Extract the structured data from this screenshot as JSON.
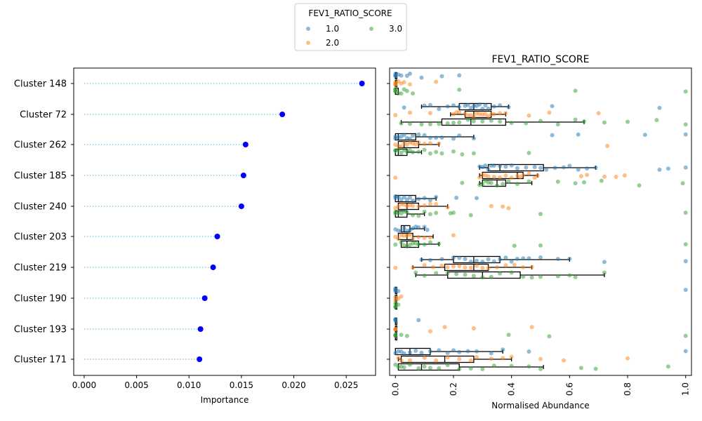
{
  "legend": {
    "title": "FEV1_RATIO_SCORE",
    "placement": "top-center",
    "entries": [
      {
        "label": "1.0",
        "color": "#1f77b4"
      },
      {
        "label": "2.0",
        "color": "#ff7f0e"
      },
      {
        "label": "3.0",
        "color": "#2ca02c"
      }
    ]
  },
  "chart_data": [
    {
      "type": "scatter",
      "variant": "lollipop",
      "title": "",
      "xlabel": "Importance",
      "ylabel": "",
      "xlim": [
        -0.001,
        0.0278
      ],
      "xticks": [
        "0.000",
        "0.005",
        "0.010",
        "0.015",
        "0.020",
        "0.025"
      ],
      "xtick_values": [
        0,
        0.005,
        0.01,
        0.015,
        0.02,
        0.025
      ],
      "grid": false,
      "point_color": "#0000ff",
      "stem_color": "#87ceeb",
      "categories": [
        "Cluster 148",
        "Cluster 72",
        "Cluster 262",
        "Cluster 185",
        "Cluster 240",
        "Cluster 203",
        "Cluster 219",
        "Cluster 190",
        "Cluster 193",
        "Cluster 171"
      ],
      "values": [
        0.0265,
        0.0189,
        0.0154,
        0.0152,
        0.015,
        0.0127,
        0.0123,
        0.0115,
        0.0111,
        0.011
      ]
    },
    {
      "type": "box",
      "variant": "box-with-strip",
      "title": "FEV1_RATIO_SCORE",
      "xlabel": "Normalised Abundance",
      "ylabel": "",
      "xlim": [
        -0.02,
        1.02
      ],
      "xticks": [
        "0.0",
        "0.2",
        "0.4",
        "0.6",
        "0.8",
        "1.0"
      ],
      "xtick_values": [
        0,
        0.2,
        0.4,
        0.6,
        0.8,
        1.0
      ],
      "grid": false,
      "categories": [
        "Cluster 148",
        "Cluster 72",
        "Cluster 262",
        "Cluster 185",
        "Cluster 240",
        "Cluster 203",
        "Cluster 219",
        "Cluster 190",
        "Cluster 193",
        "Cluster 171"
      ],
      "hue": [
        "1.0",
        "2.0",
        "3.0"
      ],
      "boxes": [
        [
          {
            "q1": 0,
            "med": 0,
            "q3": 0.005
          },
          {
            "q1": 0,
            "med": 0,
            "q3": 0.005
          },
          {
            "q1": 0,
            "med": 0,
            "q3": 0.01
          }
        ],
        [
          {
            "wlo": 0.09,
            "q1": 0.22,
            "med": 0.27,
            "q3": 0.33,
            "whi": 0.39
          },
          {
            "wlo": 0.19,
            "q1": 0.24,
            "med": 0.27,
            "q3": 0.33,
            "whi": 0.38
          },
          {
            "wlo": 0.02,
            "q1": 0.16,
            "med": 0.26,
            "q3": 0.38,
            "whi": 0.65
          }
        ],
        [
          {
            "q1": 0,
            "med": 0.01,
            "q3": 0.07,
            "whi": 0.27
          },
          {
            "q1": 0.01,
            "med": 0.03,
            "q3": 0.08,
            "whi": 0.15
          },
          {
            "q1": 0,
            "med": 0.01,
            "q3": 0.04,
            "whi": 0.09
          }
        ],
        [
          {
            "wlo": 0.29,
            "q1": 0.32,
            "med": 0.36,
            "q3": 0.51,
            "whi": 0.69
          },
          {
            "wlo": 0.29,
            "q1": 0.3,
            "med": 0.42,
            "q3": 0.44,
            "whi": 0.49
          },
          {
            "wlo": 0.29,
            "q1": 0.3,
            "med": 0.35,
            "q3": 0.38,
            "whi": 0.47
          }
        ],
        [
          {
            "q1": 0,
            "med": 0.01,
            "q3": 0.07,
            "whi": 0.14
          },
          {
            "q1": 0.01,
            "med": 0.04,
            "q3": 0.08,
            "whi": 0.18
          },
          {
            "q1": 0,
            "med": 0.01,
            "q3": 0.04,
            "whi": 0.1
          }
        ],
        [
          {
            "q1": 0.02,
            "med": 0.03,
            "q3": 0.05,
            "whi": 0.1
          },
          {
            "q1": 0.01,
            "med": 0.04,
            "q3": 0.06,
            "whi": 0.13
          },
          {
            "q1": 0.02,
            "med": 0.04,
            "q3": 0.08,
            "whi": 0.15
          }
        ],
        [
          {
            "wlo": 0.09,
            "q1": 0.2,
            "med": 0.27,
            "q3": 0.36,
            "whi": 0.6
          },
          {
            "wlo": 0.06,
            "q1": 0.17,
            "med": 0.27,
            "q3": 0.32,
            "whi": 0.47
          },
          {
            "wlo": 0.07,
            "q1": 0.18,
            "med": 0.3,
            "q3": 0.43,
            "whi": 0.72
          }
        ],
        [
          {
            "q1": 0,
            "med": 0,
            "q3": 0.005
          },
          {
            "q1": 0,
            "med": 0,
            "q3": 0.005
          },
          {
            "q1": 0,
            "med": 0,
            "q3": 0.005
          }
        ],
        [
          {
            "q1": 0,
            "med": 0,
            "q3": 0.005
          },
          {
            "q1": 0,
            "med": 0,
            "q3": 0.005
          },
          {
            "q1": 0,
            "med": 0,
            "q3": 0.005
          }
        ],
        [
          {
            "q1": 0,
            "med": 0.05,
            "q3": 0.12,
            "whi": 0.37
          },
          {
            "wlo": 0.01,
            "q1": 0.02,
            "med": 0.17,
            "q3": 0.27,
            "whi": 0.4
          },
          {
            "q1": 0.01,
            "med": 0.09,
            "q3": 0.22,
            "whi": 0.51
          }
        ]
      ],
      "points": [
        [
          [
            0,
            0,
            0,
            0.01,
            0.02,
            0.04,
            0.05,
            0.09,
            0.16,
            0.22
          ],
          [
            0,
            0,
            0,
            0.01,
            0.02,
            0.03,
            0.05,
            0.14
          ],
          [
            0,
            0,
            0,
            0,
            0.01,
            0.02,
            0.03,
            0.04,
            0.06,
            0.22,
            0.62,
            1.0
          ]
        ],
        [
          [
            0.03,
            0.1,
            0.12,
            0.15,
            0.18,
            0.2,
            0.22,
            0.24,
            0.25,
            0.26,
            0.27,
            0.28,
            0.29,
            0.3,
            0.31,
            0.32,
            0.34,
            0.36,
            0.39,
            0.54,
            0.91
          ],
          [
            0,
            0.05,
            0.12,
            0.2,
            0.21,
            0.22,
            0.24,
            0.25,
            0.26,
            0.27,
            0.28,
            0.29,
            0.3,
            0.31,
            0.32,
            0.33,
            0.34,
            0.36,
            0.38,
            0.46,
            0.53,
            0.7
          ],
          [
            0.02,
            0.05,
            0.09,
            0.12,
            0.15,
            0.18,
            0.2,
            0.22,
            0.25,
            0.27,
            0.3,
            0.33,
            0.36,
            0.4,
            0.45,
            0.5,
            0.56,
            0.62,
            0.65,
            0.72,
            0.8,
            0.9,
            1.0
          ]
        ],
        [
          [
            0,
            0,
            0.01,
            0.02,
            0.03,
            0.04,
            0.05,
            0.06,
            0.08,
            0.1,
            0.12,
            0.14,
            0.16,
            0.2,
            0.22,
            0.27,
            0.54,
            0.63,
            0.86,
            1.0
          ],
          [
            0,
            0.01,
            0.02,
            0.03,
            0.04,
            0.05,
            0.06,
            0.07,
            0.08,
            0.1,
            0.12,
            0.15,
            0.73
          ],
          [
            0,
            0,
            0.01,
            0.02,
            0.03,
            0.04,
            0.05,
            0.06,
            0.08,
            0.1,
            0.12,
            0.14,
            0.16,
            0.2,
            0.23,
            0.27,
            0.46
          ]
        ],
        [
          [
            0.29,
            0.3,
            0.31,
            0.32,
            0.33,
            0.34,
            0.36,
            0.38,
            0.4,
            0.42,
            0.45,
            0.48,
            0.5,
            0.52,
            0.55,
            0.58,
            0.6,
            0.63,
            0.66,
            0.69,
            0.91,
            0.94,
            1.0
          ],
          [
            0,
            0.29,
            0.3,
            0.31,
            0.32,
            0.34,
            0.36,
            0.38,
            0.4,
            0.42,
            0.43,
            0.44,
            0.46,
            0.48,
            0.49,
            0.64,
            0.66,
            0.72,
            0.76,
            0.79
          ],
          [
            0.23,
            0.29,
            0.3,
            0.31,
            0.32,
            0.33,
            0.35,
            0.37,
            0.39,
            0.42,
            0.46,
            0.56,
            0.62,
            0.65,
            0.71,
            0.84,
            0.99
          ]
        ],
        [
          [
            0,
            0,
            0.01,
            0.02,
            0.03,
            0.04,
            0.05,
            0.06,
            0.08,
            0.1,
            0.12,
            0.14,
            0.21,
            0.28
          ],
          [
            0,
            0.01,
            0.02,
            0.03,
            0.04,
            0.05,
            0.06,
            0.08,
            0.1,
            0.12,
            0.14,
            0.18,
            0.33,
            0.37,
            0.39
          ],
          [
            0,
            0,
            0.01,
            0.02,
            0.03,
            0.04,
            0.06,
            0.08,
            0.1,
            0.12,
            0.14,
            0.19,
            0.2,
            0.26,
            0.5,
            1.0
          ]
        ],
        [
          [
            0,
            0.01,
            0.02,
            0.03,
            0.04,
            0.05,
            0.06,
            0.07,
            0.08,
            0.1,
            0.11
          ],
          [
            0,
            0.01,
            0.02,
            0.03,
            0.04,
            0.05,
            0.06,
            0.08,
            0.1,
            0.12,
            0.2
          ],
          [
            0,
            0.02,
            0.03,
            0.04,
            0.05,
            0.06,
            0.07,
            0.08,
            0.1,
            0.12,
            0.15,
            0.41,
            0.5,
            1.0
          ]
        ],
        [
          [
            0.09,
            0.12,
            0.16,
            0.2,
            0.22,
            0.24,
            0.26,
            0.28,
            0.3,
            0.32,
            0.34,
            0.36,
            0.38,
            0.4,
            0.42,
            0.44,
            0.46,
            0.5,
            0.56,
            0.6,
            0.72,
            1.0
          ],
          [
            0,
            0.06,
            0.1,
            0.13,
            0.16,
            0.18,
            0.2,
            0.22,
            0.24,
            0.26,
            0.28,
            0.3,
            0.32,
            0.35,
            0.38,
            0.41,
            0.44,
            0.47
          ],
          [
            0.07,
            0.1,
            0.14,
            0.18,
            0.21,
            0.24,
            0.27,
            0.3,
            0.33,
            0.36,
            0.4,
            0.44,
            0.47,
            0.5,
            0.56,
            0.6,
            0.62,
            0.72
          ]
        ],
        [
          [
            0,
            0,
            0,
            0.01,
            1.0
          ],
          [
            0,
            0,
            0.01,
            0.02
          ],
          [
            0,
            0,
            0,
            0.01
          ]
        ],
        [
          [
            0,
            0,
            0,
            0.08
          ],
          [
            0,
            0,
            0,
            0.12,
            0.17,
            0.27,
            0.47
          ],
          [
            0,
            0,
            0,
            0.02,
            0.04,
            0.39,
            0.53,
            1.0
          ]
        ],
        [
          [
            0,
            0.01,
            0.02,
            0.03,
            0.05,
            0.07,
            0.09,
            0.12,
            0.15,
            0.18,
            0.2,
            0.22,
            0.25,
            0.28,
            0.33,
            0.37,
            0.46,
            1.0
          ],
          [
            0.01,
            0.02,
            0.05,
            0.1,
            0.14,
            0.18,
            0.22,
            0.26,
            0.28,
            0.33,
            0.37,
            0.4,
            0.5,
            0.58,
            0.8
          ],
          [
            0,
            0.01,
            0.02,
            0.03,
            0.05,
            0.08,
            0.1,
            0.12,
            0.15,
            0.18,
            0.22,
            0.26,
            0.3,
            0.34,
            0.4,
            0.46,
            0.5,
            0.64,
            0.69,
            0.94
          ]
        ]
      ]
    }
  ]
}
